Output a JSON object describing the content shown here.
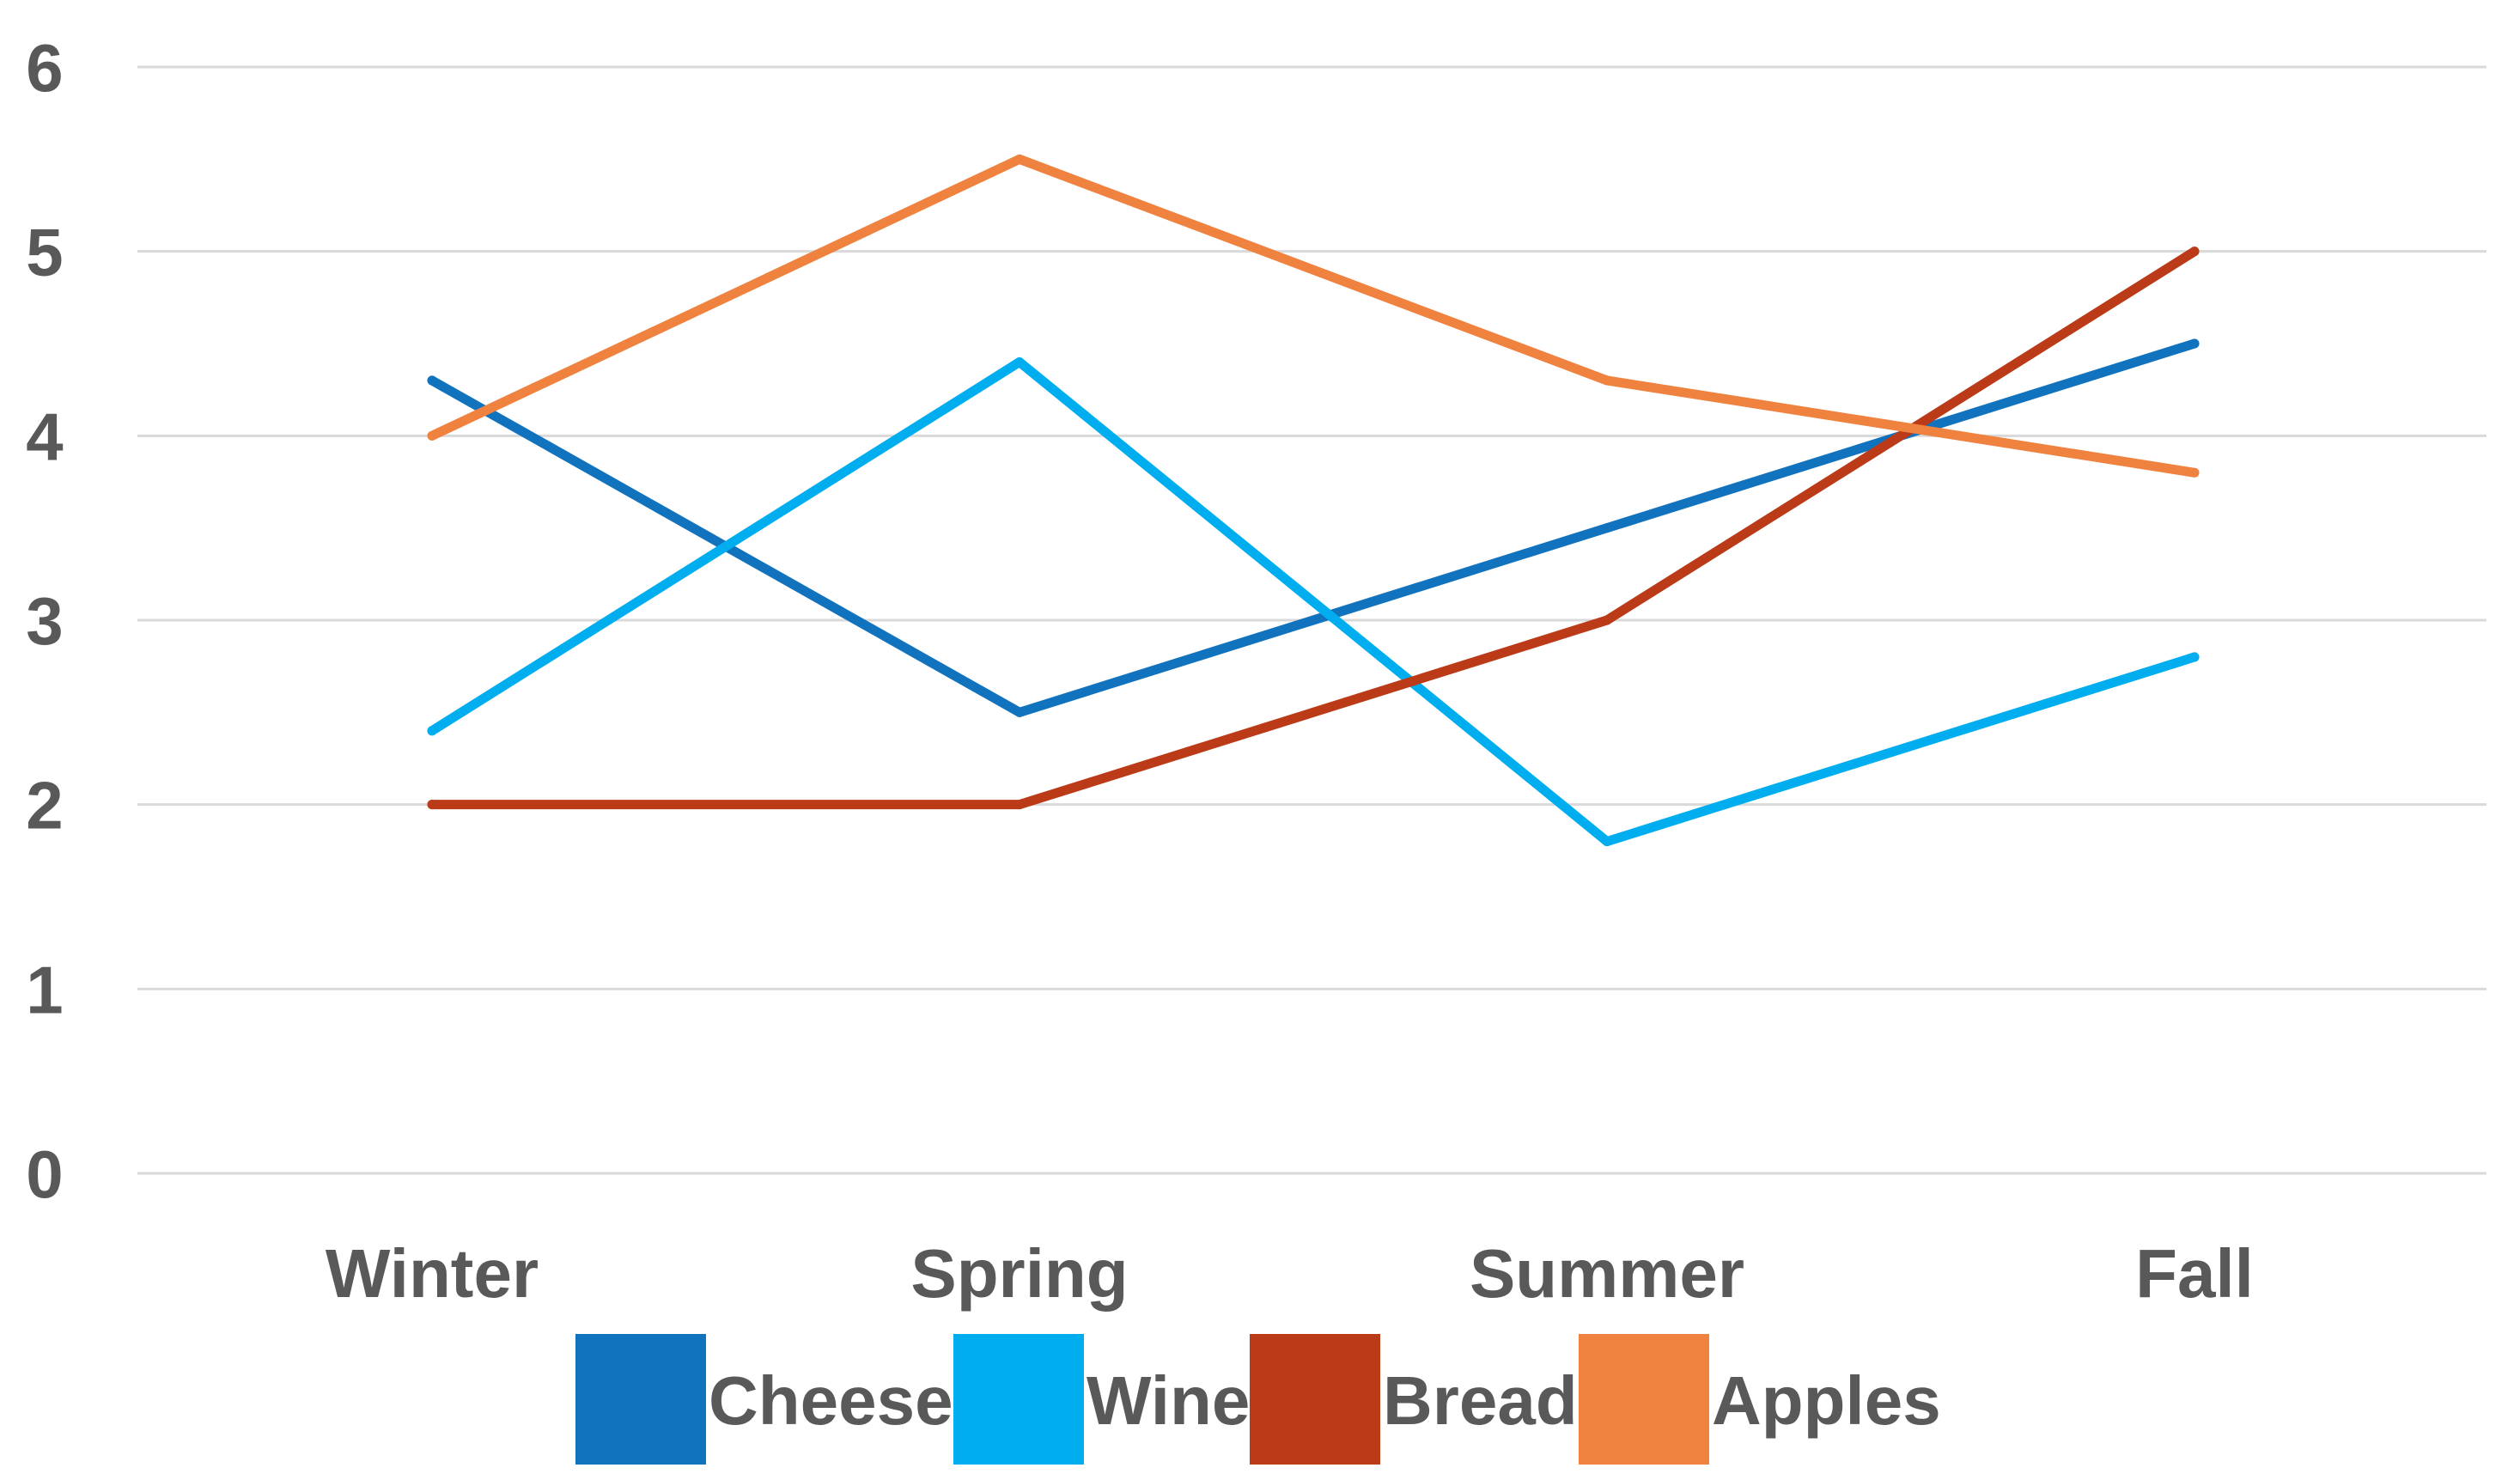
{
  "chart_data": {
    "type": "line",
    "title": "",
    "xlabel": "",
    "ylabel": "",
    "categories": [
      "Winter",
      "Spring",
      "Summer",
      "Fall"
    ],
    "ylim": [
      0,
      6
    ],
    "yticks": [
      "0",
      "1",
      "2",
      "3",
      "4",
      "5",
      "6"
    ],
    "grid": true,
    "legend_position": "bottom",
    "series": [
      {
        "name": "Cheese",
        "color": "#1172bd",
        "values": [
          4.3,
          2.5,
          3.5,
          4.5
        ]
      },
      {
        "name": "Wine",
        "color": "#00aeef",
        "values": [
          2.4,
          4.4,
          1.8,
          2.8
        ]
      },
      {
        "name": "Bread",
        "color": "#bb3a17",
        "values": [
          2.0,
          2.0,
          3.0,
          5.0
        ]
      },
      {
        "name": "Apples",
        "color": "#f0823f",
        "values": [
          4.0,
          5.5,
          4.3,
          3.8
        ]
      }
    ]
  }
}
